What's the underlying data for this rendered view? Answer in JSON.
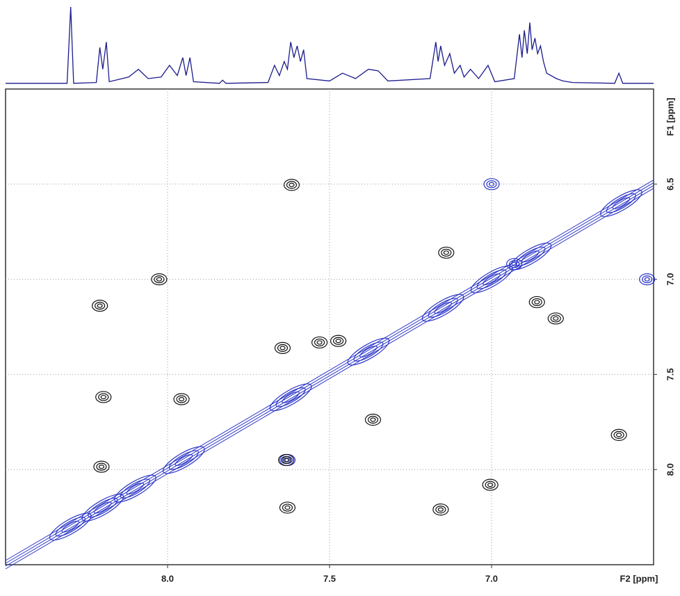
{
  "chart_data": [
    {
      "type": "line",
      "color": "#1a1a8c",
      "xlim": [
        8.5,
        6.5
      ],
      "x": [
        8.5,
        8.31,
        8.299,
        8.29,
        8.22,
        8.209,
        8.2,
        8.189,
        8.18,
        8.12,
        8.09,
        8.06,
        8.02,
        7.994,
        7.97,
        7.953,
        7.943,
        7.931,
        7.92,
        7.84,
        7.83,
        7.82,
        7.69,
        7.67,
        7.655,
        7.64,
        7.63,
        7.62,
        7.61,
        7.6,
        7.59,
        7.58,
        7.57,
        7.5,
        7.46,
        7.42,
        7.38,
        7.35,
        7.32,
        7.19,
        7.172,
        7.165,
        7.157,
        7.145,
        7.129,
        7.115,
        7.097,
        7.085,
        7.065,
        7.04,
        7.011,
        6.99,
        6.93,
        6.914,
        6.906,
        6.899,
        6.89,
        6.882,
        6.875,
        6.866,
        6.858,
        6.849,
        6.84,
        6.83,
        6.8,
        6.78,
        6.75,
        6.62,
        6.607,
        6.595,
        6.5
      ],
      "values": [
        2,
        2,
        100,
        2,
        3,
        48,
        20,
        55,
        4,
        10,
        20,
        8,
        10,
        25,
        12,
        35,
        12,
        35,
        4,
        2,
        6,
        2,
        3,
        25,
        12,
        30,
        20,
        55,
        35,
        50,
        30,
        45,
        8,
        5,
        15,
        8,
        20,
        18,
        5,
        8,
        55,
        30,
        50,
        25,
        40,
        15,
        25,
        10,
        20,
        8,
        25,
        4,
        8,
        65,
        35,
        70,
        40,
        80,
        45,
        60,
        40,
        50,
        30,
        15,
        8,
        5,
        3,
        2,
        15,
        2,
        2
      ]
    },
    {
      "type": "contour",
      "x_label": "F2 [ppm]",
      "y_label": "F1 [ppm]",
      "xlim": [
        8.5,
        6.5
      ],
      "ylim": [
        6.0,
        8.5
      ],
      "xticks": [
        {
          "value": 8,
          "label": "8.0"
        },
        7.5,
        {
          "value": 7,
          "label": "7.0"
        }
      ],
      "yticks": [
        6.5,
        {
          "value": 7,
          "label": "7.0"
        },
        7.5,
        {
          "value": 8,
          "label": "8.0"
        }
      ],
      "grid": true,
      "diagonal_color": "#2b35c8",
      "series": [
        {
          "color": "#2b35c8",
          "x": [
            8.3,
            8.2,
            8.1,
            7.95,
            7.62,
            7.38,
            7.15,
            7.0,
            6.88,
            6.6
          ],
          "values": [
            8.3,
            8.2,
            8.1,
            7.95,
            7.62,
            7.38,
            7.15,
            7.0,
            6.88,
            6.6
          ]
        },
        {
          "color": "#2b35c8",
          "x": [
            7.0,
            6.52,
            7.63,
            6.93
          ],
          "values": [
            6.5,
            7.0,
            7.95,
            6.92
          ]
        },
        {
          "color": "#111111",
          "x": [
            7.617,
            8.026,
            8.209,
            7.14,
            6.86,
            6.802,
            7.645,
            7.531,
            7.473,
            8.198,
            7.957,
            7.366,
            6.607,
            8.204,
            7.634,
            7.004,
            7.63,
            7.157
          ],
          "values": [
            6.504,
            7.0,
            7.139,
            6.86,
            7.12,
            7.206,
            7.361,
            7.332,
            7.324,
            7.619,
            7.63,
            7.738,
            7.818,
            7.985,
            7.95,
            8.08,
            8.2,
            8.21
          ]
        }
      ]
    }
  ]
}
